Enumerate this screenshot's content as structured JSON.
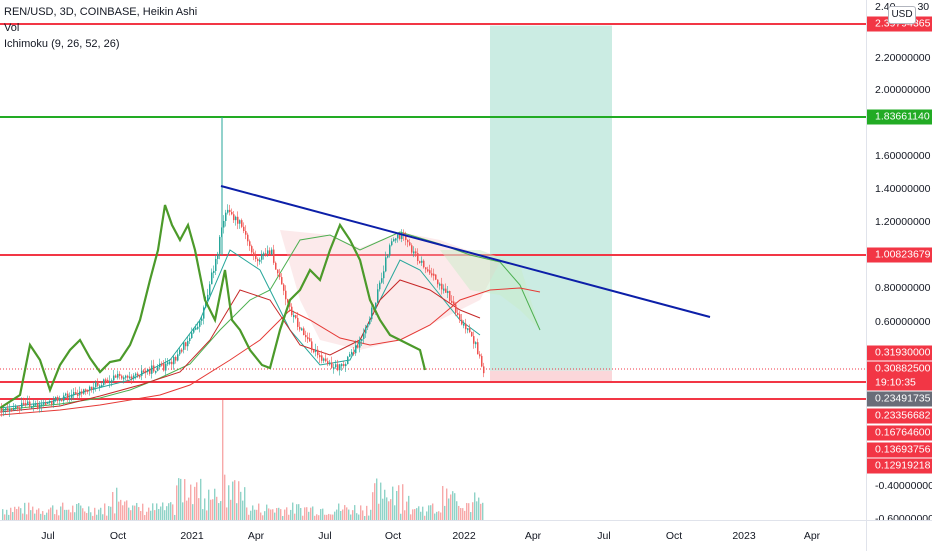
{
  "legend": {
    "symbol_line": "REN/USD, 3D, COINBASE, Heikin Ashi",
    "vol_label": "Vol",
    "ichimoku_label": "Ichimoku (9, 26, 52, 26)"
  },
  "currency_badge": "USD",
  "price_axis": {
    "ticks": [
      "2.20000000",
      "2.00000000",
      "1.60000000",
      "1.40000000",
      "1.20000000",
      "0.80000000",
      "0.60000000",
      "-0.40000000",
      "-0.60000000"
    ],
    "partial_top_label": "2.40",
    "partial_top_label_end": "30"
  },
  "price_tags": [
    {
      "text": "2.39794365",
      "color": "#f23645"
    },
    {
      "text": "1.83661140",
      "color": "#22ab24"
    },
    {
      "text": "1.00823679",
      "color": "#f23645"
    },
    {
      "text": "0.31930000",
      "color": "#f23645"
    },
    {
      "text": "0.30882500",
      "color": "#f23645"
    },
    {
      "text": "19:10:35",
      "color": "#f23645"
    },
    {
      "text": "0.23491735",
      "color": "#6a6d78"
    },
    {
      "text": "0.23356682",
      "color": "#f23645"
    },
    {
      "text": "0.16764600",
      "color": "#f23645"
    },
    {
      "text": "0.13693756",
      "color": "#f23645"
    },
    {
      "text": "0.12919218",
      "color": "#f23645"
    }
  ],
  "time_axis": [
    "Jul",
    "Oct",
    "2021",
    "Apr",
    "Jul",
    "Oct",
    "2022",
    "Apr",
    "Jul",
    "Oct",
    "2023",
    "Apr"
  ],
  "colors": {
    "resistance": "#f23645",
    "support_green": "#22ab24",
    "trendline": "#0c1fa8",
    "target_zone": "#b9e6da",
    "stop_zone": "#fbd3d6",
    "bull_candle": "#26a69a",
    "bear_candle": "#ef5350"
  },
  "chart_data": {
    "type": "line",
    "title": "REN/USD, 3D, COINBASE, Heikin Ashi",
    "horizontal_levels": [
      2.39794365,
      1.8366114,
      1.00823679,
      0.23491735,
      0.23356682
    ],
    "trendline": {
      "from": [
        "Mar 2021",
        1.42
      ],
      "to": [
        "Dec 2022",
        0.63
      ]
    },
    "target_zone": {
      "from": "Feb 2022",
      "to": "Jun 2022",
      "top": 2.39794365,
      "bottom": 0.308825
    },
    "stop_zone": {
      "from": "Feb 2022",
      "to": "Jun 2022",
      "top": 0.308825,
      "bottom": 0.23356682
    },
    "last_price": 0.308825
  }
}
